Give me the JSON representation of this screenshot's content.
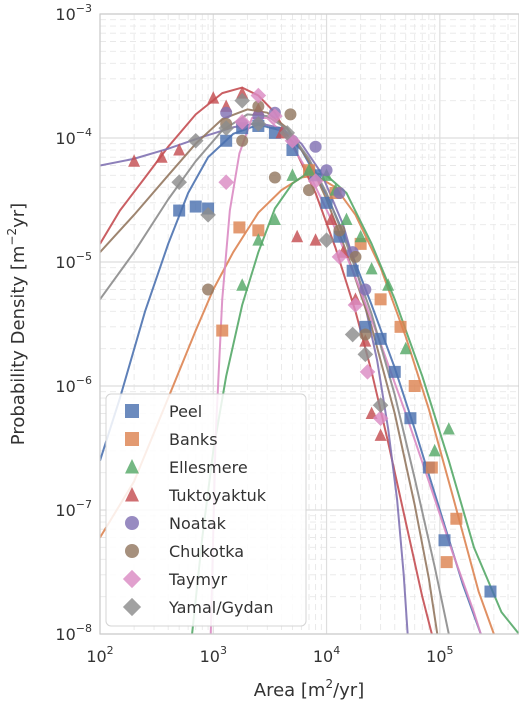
{
  "chart_data": {
    "type": "scatter",
    "title": "",
    "xlabel": "Area [m²/yr]",
    "ylabel": "Probability Density [m⁻²yr]",
    "xscale": "log",
    "yscale": "log",
    "xlim": [
      100,
      500000
    ],
    "ylim": [
      1e-08,
      0.001
    ],
    "grid": true,
    "legend_position": "lower-left",
    "x_ticks": [
      {
        "value": 100,
        "base": "10",
        "exp": "2"
      },
      {
        "value": 1000,
        "base": "10",
        "exp": "3"
      },
      {
        "value": 10000,
        "base": "10",
        "exp": "4"
      },
      {
        "value": 100000,
        "base": "10",
        "exp": "5"
      }
    ],
    "y_ticks": [
      {
        "value": 1e-08,
        "base": "10",
        "exp": "−8"
      },
      {
        "value": 1e-07,
        "base": "10",
        "exp": "−7"
      },
      {
        "value": 1e-06,
        "base": "10",
        "exp": "−6"
      },
      {
        "value": 1e-05,
        "base": "10",
        "exp": "−5"
      },
      {
        "value": 0.0001,
        "base": "10",
        "exp": "−4"
      },
      {
        "value": 0.001,
        "base": "10",
        "exp": "−3"
      }
    ],
    "series": [
      {
        "name": "Peel",
        "color": "#4c72b0",
        "marker": "square",
        "points": [
          [
            500,
            2.6e-05
          ],
          [
            700,
            2.8e-05
          ],
          [
            900,
            2.7e-05
          ],
          [
            1300,
            9.5e-05
          ],
          [
            1800,
            0.00012
          ],
          [
            2500,
            0.000125
          ],
          [
            3500,
            0.00011
          ],
          [
            5000,
            8e-05
          ],
          [
            8000,
            5e-05
          ],
          [
            10000,
            3e-05
          ],
          [
            13000,
            1.6e-05
          ],
          [
            17000,
            8.5e-06
          ],
          [
            22000,
            3e-06
          ],
          [
            30000,
            2.4e-06
          ],
          [
            40000,
            1.3e-06
          ],
          [
            55000,
            5.5e-07
          ],
          [
            80000,
            2.2e-07
          ],
          [
            110000,
            5.7e-08
          ],
          [
            280000,
            2.2e-08
          ]
        ],
        "fit": [
          [
            100,
            2.5e-07
          ],
          [
            150,
            8e-07
          ],
          [
            250,
            4e-06
          ],
          [
            400,
            1.4e-05
          ],
          [
            600,
            3.6e-05
          ],
          [
            900,
            7e-05
          ],
          [
            1500,
            0.000108
          ],
          [
            2500,
            0.000128
          ],
          [
            4000,
            0.000115
          ],
          [
            6000,
            8e-05
          ],
          [
            10000,
            3.5e-05
          ],
          [
            15000,
            1.5e-05
          ],
          [
            25000,
            4.5e-06
          ],
          [
            40000,
            1.4e-06
          ],
          [
            60000,
            4.5e-07
          ],
          [
            100000,
            1e-07
          ],
          [
            160000,
            2.5e-08
          ],
          [
            230000,
            1e-08
          ]
        ]
      },
      {
        "name": "Banks",
        "color": "#dd8452",
        "marker": "square",
        "points": [
          [
            1200,
            2.8e-06
          ],
          [
            1700,
            1.9e-05
          ],
          [
            2500,
            1.8e-05
          ],
          [
            7000,
            5.5e-05
          ],
          [
            12000,
            3.6e-05
          ],
          [
            20000,
            1.4e-05
          ],
          [
            30000,
            5e-06
          ],
          [
            45000,
            3e-06
          ],
          [
            60000,
            1e-06
          ],
          [
            85000,
            2.2e-07
          ],
          [
            115000,
            3.8e-08
          ],
          [
            140000,
            8.5e-08
          ]
        ],
        "fit": [
          [
            100,
            6e-08
          ],
          [
            200,
            1.7e-07
          ],
          [
            400,
            8e-07
          ],
          [
            700,
            2.8e-06
          ],
          [
            1000,
            6e-06
          ],
          [
            1500,
            1.2e-05
          ],
          [
            2500,
            2.5e-05
          ],
          [
            4000,
            3.8e-05
          ],
          [
            6000,
            4.8e-05
          ],
          [
            8000,
            5e-05
          ],
          [
            12000,
            4e-05
          ],
          [
            18000,
            2.4e-05
          ],
          [
            30000,
            9e-06
          ],
          [
            50000,
            2.5e-06
          ],
          [
            80000,
            6.5e-07
          ],
          [
            130000,
            1.3e-07
          ],
          [
            220000,
            2.2e-08
          ],
          [
            300000,
            1e-08
          ]
        ]
      },
      {
        "name": "Ellesmere",
        "color": "#55a868",
        "marker": "triangle",
        "points": [
          [
            1800,
            6.5e-06
          ],
          [
            2500,
            1.5e-05
          ],
          [
            3500,
            2.2e-05
          ],
          [
            5000,
            5e-05
          ],
          [
            7000,
            5.5e-05
          ],
          [
            10000,
            5e-05
          ],
          [
            12000,
            3.8e-05
          ],
          [
            15000,
            2.2e-05
          ],
          [
            20000,
            1.6e-05
          ],
          [
            25000,
            8.8e-06
          ],
          [
            35000,
            6.5e-06
          ],
          [
            50000,
            2e-06
          ],
          [
            90000,
            3e-07
          ],
          [
            120000,
            4.5e-07
          ]
        ],
        "fit": [
          [
            650,
            1e-08
          ],
          [
            800,
            6e-08
          ],
          [
            1000,
            3e-07
          ],
          [
            1300,
            1.2e-06
          ],
          [
            1800,
            4.5e-06
          ],
          [
            2500,
            1.2e-05
          ],
          [
            3500,
            2.7e-05
          ],
          [
            5000,
            4.3e-05
          ],
          [
            7000,
            5.3e-05
          ],
          [
            10000,
            5e-05
          ],
          [
            15000,
            3.6e-05
          ],
          [
            25000,
            1.4e-05
          ],
          [
            40000,
            5e-06
          ],
          [
            70000,
            1.2e-06
          ],
          [
            120000,
            2.5e-07
          ],
          [
            200000,
            5e-08
          ],
          [
            350000,
            1.5e-08
          ],
          [
            500000,
            1e-08
          ]
        ]
      },
      {
        "name": "Tuktoyaktuk",
        "color": "#c44e52",
        "marker": "triangle",
        "points": [
          [
            200,
            6.5e-05
          ],
          [
            350,
            7e-05
          ],
          [
            500,
            8e-05
          ],
          [
            1000,
            0.00021
          ],
          [
            1300,
            0.00018
          ],
          [
            1800,
            0.00023
          ],
          [
            2500,
            0.00017
          ],
          [
            4000,
            0.00011
          ],
          [
            5500,
            1.6e-05
          ],
          [
            8000,
            1.5e-05
          ],
          [
            11000,
            2.2e-05
          ],
          [
            14000,
            1.2e-05
          ],
          [
            18000,
            5e-06
          ],
          [
            22000,
            2.3e-06
          ],
          [
            25000,
            6e-07
          ],
          [
            30000,
            4e-07
          ]
        ],
        "fit": [
          [
            100,
            1.4e-05
          ],
          [
            150,
            2.6e-05
          ],
          [
            250,
            4.8e-05
          ],
          [
            400,
            8.5e-05
          ],
          [
            700,
            0.000155
          ],
          [
            1200,
            0.00023
          ],
          [
            1800,
            0.000255
          ],
          [
            2500,
            0.00022
          ],
          [
            3500,
            0.00016
          ],
          [
            5000,
            9e-05
          ],
          [
            8000,
            3.6e-05
          ],
          [
            12000,
            1.3e-05
          ],
          [
            18000,
            4e-06
          ],
          [
            25000,
            1.3e-06
          ],
          [
            35000,
            3.5e-07
          ],
          [
            50000,
            8e-08
          ],
          [
            70000,
            2e-08
          ],
          [
            85000,
            1e-08
          ]
        ]
      },
      {
        "name": "Noatak",
        "color": "#8172b3",
        "marker": "circle",
        "points": [
          [
            1300,
            0.00016
          ],
          [
            1800,
            0.00013
          ],
          [
            2500,
            0.00015
          ],
          [
            3500,
            0.00016
          ],
          [
            5000,
            9.5e-05
          ],
          [
            8000,
            8.5e-05
          ],
          [
            10000,
            5.5e-05
          ],
          [
            13000,
            3.6e-05
          ],
          [
            17000,
            1.2e-05
          ],
          [
            22000,
            6e-06
          ]
        ],
        "fit": [
          [
            100,
            6e-05
          ],
          [
            200,
            6.8e-05
          ],
          [
            400,
            8.2e-05
          ],
          [
            800,
            0.000102
          ],
          [
            1500,
            0.000122
          ],
          [
            2500,
            0.000132
          ],
          [
            4000,
            0.00012
          ],
          [
            6000,
            9e-05
          ],
          [
            9000,
            5.2e-05
          ],
          [
            14000,
            2e-05
          ],
          [
            20000,
            6.5e-06
          ],
          [
            28000,
            1.6e-06
          ],
          [
            35000,
            4.5e-07
          ],
          [
            42000,
            1.2e-07
          ],
          [
            48000,
            3e-08
          ],
          [
            52000,
            1e-08
          ]
        ]
      },
      {
        "name": "Chukotka",
        "color": "#937860",
        "marker": "circle",
        "points": [
          [
            900,
            6e-06
          ],
          [
            1300,
            0.00013
          ],
          [
            1800,
            9.5e-05
          ],
          [
            2500,
            0.00018
          ],
          [
            3500,
            4.8e-05
          ],
          [
            4800,
            0.000155
          ],
          [
            7000,
            3.8e-05
          ],
          [
            13000,
            1.8e-05
          ],
          [
            18000,
            1.1e-05
          ],
          [
            22000,
            2.6e-06
          ]
        ],
        "fit": [
          [
            100,
            1.2e-05
          ],
          [
            200,
            2.4e-05
          ],
          [
            400,
            5e-05
          ],
          [
            700,
            9e-05
          ],
          [
            1200,
            0.000142
          ],
          [
            2000,
            0.00017
          ],
          [
            3000,
            0.00016
          ],
          [
            4500,
            0.00012
          ],
          [
            7000,
            6.5e-05
          ],
          [
            10000,
            3.2e-05
          ],
          [
            15000,
            1.2e-05
          ],
          [
            25000,
            3e-06
          ],
          [
            40000,
            6e-07
          ],
          [
            60000,
            1.1e-07
          ],
          [
            80000,
            2.8e-08
          ],
          [
            95000,
            1e-08
          ]
        ]
      },
      {
        "name": "Taymyr",
        "color": "#da8bc3",
        "marker": "diamond",
        "points": [
          [
            1300,
            4.4e-05
          ],
          [
            1800,
            0.000135
          ],
          [
            2500,
            0.00022
          ],
          [
            3500,
            0.00015
          ],
          [
            5000,
            9.5e-05
          ],
          [
            8000,
            4.5e-05
          ],
          [
            13000,
            1.1e-05
          ],
          [
            18000,
            4.5e-06
          ],
          [
            23000,
            1.3e-06
          ],
          [
            30000,
            5.5e-07
          ]
        ],
        "fit": [
          [
            950,
            1e-08
          ],
          [
            1050,
            4e-07
          ],
          [
            1200,
            5e-06
          ],
          [
            1400,
            2.6e-05
          ],
          [
            1700,
            7.5e-05
          ],
          [
            2200,
            0.000145
          ],
          [
            3000,
            0.000145
          ],
          [
            4500,
            0.0001
          ],
          [
            7000,
            5.2e-05
          ],
          [
            11000,
            2.2e-05
          ],
          [
            18000,
            7.5e-06
          ],
          [
            30000,
            2.2e-06
          ],
          [
            50000,
            6e-07
          ],
          [
            80000,
            1.7e-07
          ],
          [
            130000,
            4.5e-08
          ],
          [
            200000,
            1.5e-08
          ],
          [
            230000,
            1e-08
          ]
        ]
      },
      {
        "name": "Yamal/Gydan",
        "color": "#8c8c8c",
        "marker": "diamond",
        "points": [
          [
            500,
            4.4e-05
          ],
          [
            700,
            9.5e-05
          ],
          [
            900,
            2.4e-05
          ],
          [
            1300,
            0.00012
          ],
          [
            1800,
            0.0002
          ],
          [
            2500,
            0.00013
          ],
          [
            4500,
            0.00011
          ],
          [
            10000,
            1.5e-05
          ],
          [
            17000,
            2.6e-06
          ],
          [
            22000,
            1.8e-06
          ],
          [
            30000,
            7e-07
          ]
        ],
        "fit": [
          [
            100,
            5e-06
          ],
          [
            200,
            1.2e-05
          ],
          [
            400,
            3.2e-05
          ],
          [
            700,
            6.5e-05
          ],
          [
            1200,
            0.000115
          ],
          [
            2000,
            0.000155
          ],
          [
            3000,
            0.00015
          ],
          [
            4500,
            0.000118
          ],
          [
            7000,
            6.8e-05
          ],
          [
            10000,
            3.6e-05
          ],
          [
            15000,
            1.4e-05
          ],
          [
            25000,
            3.8e-06
          ],
          [
            40000,
            8.5e-07
          ],
          [
            60000,
            1.8e-07
          ],
          [
            90000,
            3.5e-08
          ],
          [
            120000,
            1e-08
          ]
        ]
      }
    ]
  }
}
